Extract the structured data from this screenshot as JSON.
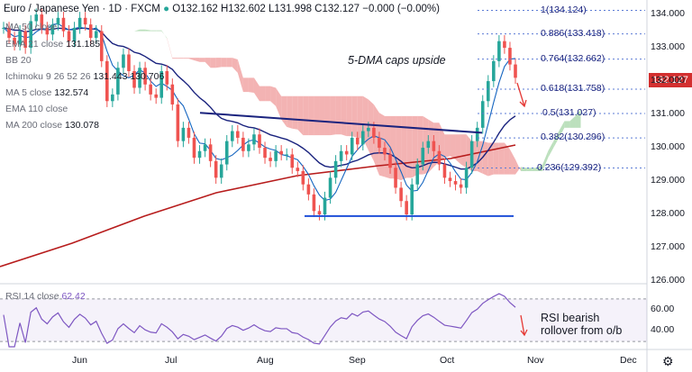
{
  "header": {
    "symbol": "Euro / Japanese Yen · 1D · FXCM",
    "ohlc": "O132.162  H132.602  L131.998  C132.127  −0.000 (−0.00%)"
  },
  "overlays": [
    {
      "label": "MA 50 close",
      "value": ""
    },
    {
      "label": "EMA 21 close",
      "value": "131.185"
    },
    {
      "label": "BB 20",
      "value": ""
    },
    {
      "label": "Ichimoku 9 26 52 26",
      "value": "131.443  130.706"
    },
    {
      "label": "MA 5 close",
      "value": "132.574"
    },
    {
      "label": "EMA 110 close",
      "value": ""
    },
    {
      "label": "MA 200 close",
      "value": "130.078"
    }
  ],
  "last_price": "132.127",
  "annotations": {
    "main": "5-DMA caps upside",
    "rsi": "RSI bearish rollover from o/b"
  },
  "rsi_label": "RSI 14 close",
  "rsi_value": "62.42",
  "gear_icon": "⚙",
  "colors": {
    "up": "#26a69a",
    "down": "#ef5350",
    "ma5": "#1565c0",
    "ma200": "#b71c1c",
    "ema21": "#1a237e",
    "cloud_green": "#a5d6a7",
    "cloud_red": "#ef9a9a",
    "rsi": "#7e57c2",
    "trend": "#1a237e"
  },
  "chart_data": {
    "type": "candlestick",
    "y_ticks": [
      "134.000",
      "133.000",
      "132.000",
      "131.000",
      "130.000",
      "129.000",
      "128.000",
      "127.000",
      "126.000"
    ],
    "ylim": [
      126,
      134.3
    ],
    "x_ticks": [
      "Jun",
      "Jul",
      "Aug",
      "Sep",
      "Oct",
      "Nov",
      "Dec"
    ],
    "fib_levels": [
      {
        "label": "1(134.124)",
        "value": 134.124
      },
      {
        "label": "0.886(133.418)",
        "value": 133.418
      },
      {
        "label": "0.764(132.662)",
        "value": 132.662
      },
      {
        "label": "0.618(131.758)",
        "value": 131.758
      },
      {
        "label": "0.5(131.027)",
        "value": 131.027
      },
      {
        "label": "0.382(130.296)",
        "value": 130.296
      },
      {
        "label": "0.236(129.392)",
        "value": 129.392
      }
    ],
    "rsi_ticks": [
      "60.00",
      "40.00"
    ],
    "rsi_ylim": [
      25,
      80
    ],
    "close": [
      133.6,
      133.3,
      133.1,
      133.5,
      133.0,
      133.8,
      134.0,
      133.6,
      133.4,
      133.7,
      133.9,
      133.5,
      133.2,
      133.6,
      133.9,
      133.7,
      133.3,
      133.5,
      132.6,
      131.4,
      131.6,
      132.4,
      132.8,
      132.3,
      131.8,
      132.4,
      131.9,
      131.6,
      131.5,
      132.3,
      131.9,
      131.3,
      130.2,
      130.6,
      130.3,
      129.7,
      129.9,
      130.1,
      129.6,
      129.1,
      129.5,
      130.2,
      130.5,
      130.3,
      129.9,
      130.1,
      130.4,
      130.0,
      129.7,
      129.6,
      129.9,
      129.8,
      129.8,
      129.4,
      129.3,
      128.9,
      128.6,
      128.1,
      128.0,
      128.5,
      129.1,
      129.6,
      129.9,
      129.8,
      130.3,
      130.1,
      130.5,
      130.6,
      130.3,
      130.0,
      129.8,
      129.4,
      128.8,
      128.4,
      128.0,
      128.9,
      129.5,
      130.0,
      130.2,
      129.9,
      129.5,
      129.1,
      129.0,
      128.9,
      128.8,
      129.4,
      130.2,
      130.6,
      131.4,
      132.0,
      132.6,
      133.2,
      133.0,
      132.5,
      132.1
    ]
  }
}
